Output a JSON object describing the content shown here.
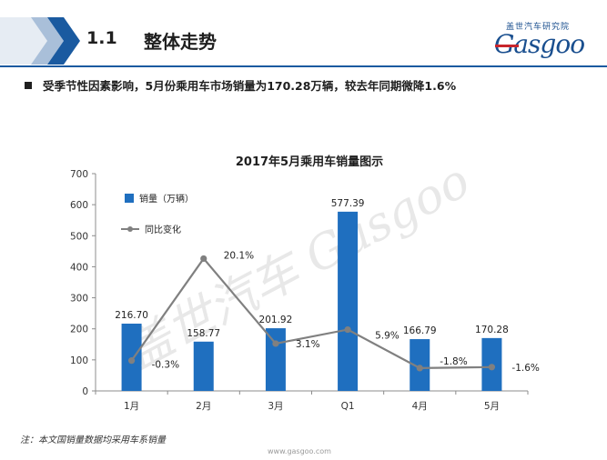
{
  "header": {
    "section_number": "1.1",
    "section_title": "整体走势",
    "logo_cn": "盖世汽车研究院",
    "logo_en": "Gasgoo"
  },
  "bullet": {
    "text": "受季节性因素影响，5月份乘用车市场销量为170.28万辆，较去年同期微降1.6%"
  },
  "colors": {
    "bar": "#1f6fbf",
    "line": "#808080",
    "header_blue": "#1a5aa0"
  },
  "chart_data": {
    "type": "bar",
    "title": "2017年5月乘用车销量图示",
    "categories": [
      "1月",
      "2月",
      "3月",
      "Q1",
      "4月",
      "5月"
    ],
    "series": [
      {
        "name": "销量（万辆）",
        "type": "bar",
        "values": [
          216.7,
          158.77,
          201.92,
          577.39,
          166.79,
          170.28
        ],
        "labels": [
          "216.70",
          "158.77",
          "201.92",
          "577.39",
          "166.79",
          "170.28"
        ]
      },
      {
        "name": "同比变化",
        "type": "line",
        "values": [
          -0.3,
          20.1,
          3.1,
          5.9,
          -1.8,
          -1.6
        ],
        "labels": [
          "-0.3%",
          "20.1%",
          "3.1%",
          "5.9%",
          "-1.8%",
          "-1.6%"
        ]
      }
    ],
    "ylim": [
      0,
      700
    ],
    "yticks": [
      "0",
      "100",
      "200",
      "300",
      "400",
      "500",
      "600",
      "700"
    ],
    "xlabel": "",
    "ylabel": "",
    "legend": "top-left",
    "watermark": "盖世汽车 Gasgoo"
  },
  "footer": {
    "note": "注：本文国销量数据均采用车系销量",
    "url": "www.gasgoo.com"
  }
}
